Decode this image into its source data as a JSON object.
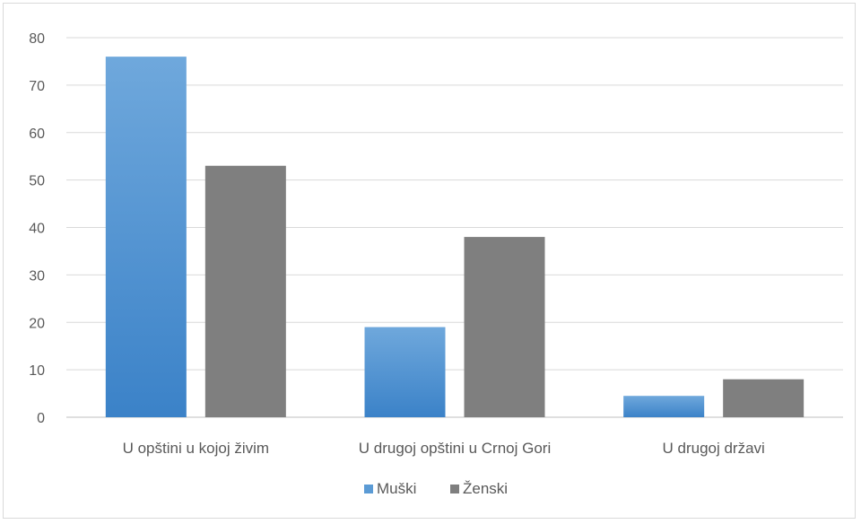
{
  "chart_data": {
    "type": "bar",
    "categories": [
      "U opštini u kojoj živim",
      "U drugoj opštini u Crnoj Gori",
      "U drugoj državi"
    ],
    "series": [
      {
        "name": "Muški",
        "values": [
          76,
          19,
          4.5
        ],
        "color": "#5b9bd5"
      },
      {
        "name": "Ženski",
        "values": [
          53,
          38,
          8
        ],
        "color": "#7f7f7f"
      }
    ],
    "yticks": [
      "0",
      "10",
      "20",
      "30",
      "40",
      "50",
      "60",
      "70",
      "80"
    ],
    "ylim": [
      0,
      80
    ],
    "grid": true,
    "legend_position": "bottom",
    "title": "",
    "xlabel": "",
    "ylabel": ""
  }
}
